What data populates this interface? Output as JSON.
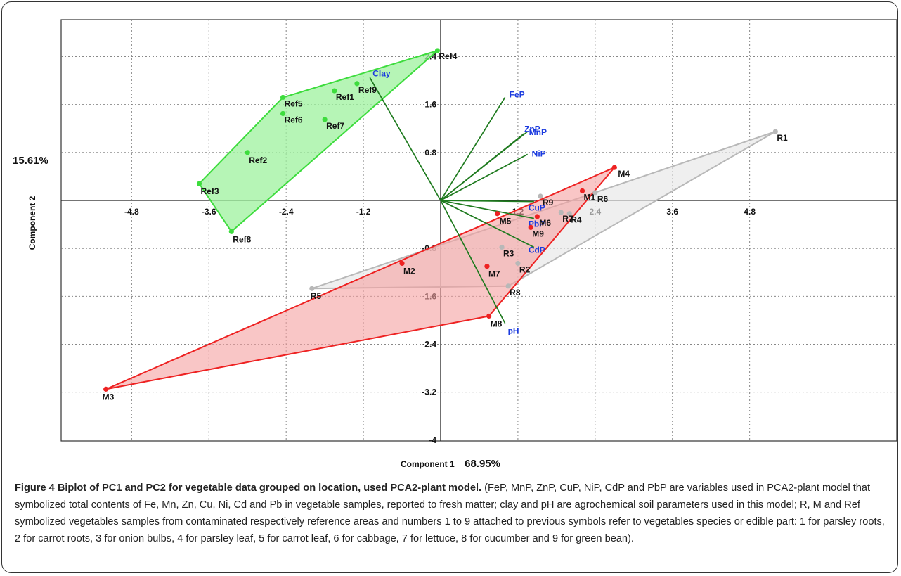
{
  "axes": {
    "x_label": "Component 1",
    "y_label": "Component 2",
    "x_percent": "68.95%",
    "y_percent": "15.61%"
  },
  "caption": {
    "title": "Figure 4 Biplot of PC1 and PC2 for vegetable data grouped on location, used PCA2-plant model.",
    "body": "(FeP, MnP, ZnP, CuP, NiP, CdP and PbP are variables used in PCA2-plant model that symbolized total contents of Fe, Mn, Zn, Cu, Ni, Cd and Pb in vegetable samples, reported to fresh matter; clay and pH are agrochemical soil parameters used in this model; R, M and Ref symbolized vegetables samples from contaminated respectively reference areas and numbers 1 to 9 attached to previous symbols refer to vegetables species or edible part: 1 for parsley roots, 2 for carrot roots, 3 for onion bulbs, 4 for parsley leaf, 5 for carrot leaf, 6 for cabbage, 7 for lettuce, 8 for cucumber and 9 for green bean)."
  },
  "colors": {
    "ref": "#3ddc3d",
    "ref_fill": "#9df29d",
    "m": "#ee2222",
    "m_fill": "#f5a0a0",
    "r": "#b8b8b8",
    "r_fill": "#e6e6e6",
    "vector": "#1e7a1e",
    "vector_label": "#1a3adf"
  },
  "chart_data": {
    "type": "scatter",
    "xlabel": "Component 1",
    "ylabel": "Component 2",
    "xlim": [
      -5.7,
      5.9
    ],
    "ylim": [
      -4.0,
      2.6
    ],
    "x_ticks": [
      -4.8,
      -3.6,
      -2.4,
      -1.2,
      1.2,
      2.4,
      3.6,
      4.8
    ],
    "y_ticks": [
      2.4,
      1.6,
      0.8,
      -0.8,
      -1.6,
      -2.4,
      -3.2,
      -4
    ],
    "grid": true,
    "series": [
      {
        "name": "Ref",
        "points": [
          {
            "label": "Ref1",
            "x": -1.65,
            "y": 1.83
          },
          {
            "label": "Ref2",
            "x": -3.0,
            "y": 0.8
          },
          {
            "label": "Ref3",
            "x": -3.75,
            "y": 0.28
          },
          {
            "label": "Ref4",
            "x": -0.05,
            "y": 2.5
          },
          {
            "label": "Ref5",
            "x": -2.45,
            "y": 1.72
          },
          {
            "label": "Ref6",
            "x": -2.45,
            "y": 1.45
          },
          {
            "label": "Ref7",
            "x": -1.8,
            "y": 1.35
          },
          {
            "label": "Ref8",
            "x": -3.25,
            "y": -0.52
          },
          {
            "label": "Ref9",
            "x": -1.3,
            "y": 1.95
          }
        ],
        "hull": [
          "Ref4",
          "Ref5",
          "Ref3",
          "Ref8",
          "Ref4"
        ]
      },
      {
        "name": "M",
        "points": [
          {
            "label": "M1",
            "x": 2.2,
            "y": 0.16
          },
          {
            "label": "M2",
            "x": -0.6,
            "y": -1.05
          },
          {
            "label": "M3",
            "x": -5.2,
            "y": -3.15
          },
          {
            "label": "M4",
            "x": 2.7,
            "y": 0.55
          },
          {
            "label": "M5",
            "x": 0.88,
            "y": -0.22
          },
          {
            "label": "M6",
            "x": 1.5,
            "y": -0.27
          },
          {
            "label": "M7",
            "x": 0.72,
            "y": -1.1
          },
          {
            "label": "M8",
            "x": 0.75,
            "y": -1.93
          },
          {
            "label": "M9",
            "x": 1.4,
            "y": -0.45
          }
        ],
        "hull": [
          "M4",
          "M3",
          "M8",
          "M4"
        ]
      },
      {
        "name": "R",
        "points": [
          {
            "label": "R1",
            "x": 5.2,
            "y": 1.15
          },
          {
            "label": "R2",
            "x": 1.2,
            "y": -1.05
          },
          {
            "label": "R3",
            "x": 0.95,
            "y": -0.78
          },
          {
            "label": "R4",
            "x": 2.0,
            "y": -0.22
          },
          {
            "label": "R5",
            "x": -2.0,
            "y": -1.47
          },
          {
            "label": "R6",
            "x": 2.4,
            "y": 0.13
          },
          {
            "label": "R7",
            "x": 1.87,
            "y": -0.2
          },
          {
            "label": "R8",
            "x": 1.05,
            "y": -1.43
          },
          {
            "label": "R9",
            "x": 1.55,
            "y": 0.07
          }
        ],
        "hull": [
          "R1",
          "R5",
          "R8",
          "R1"
        ]
      }
    ],
    "vectors": [
      {
        "label": "FeP",
        "x": 1.0,
        "y": 1.72
      },
      {
        "label": "MnP",
        "x": 1.35,
        "y": 1.15
      },
      {
        "label": "ZnP",
        "x": 1.3,
        "y": 1.12
      },
      {
        "label": "NiP",
        "x": 1.35,
        "y": 0.77
      },
      {
        "label": "CuP",
        "x": 1.45,
        "y": -0.02
      },
      {
        "label": "PbP",
        "x": 1.45,
        "y": -0.3
      },
      {
        "label": "CdP",
        "x": 1.45,
        "y": -0.78
      },
      {
        "label": "pH",
        "x": 1.0,
        "y": -2.05
      },
      {
        "label": "Clay",
        "x": -1.1,
        "y": 2.05
      }
    ]
  }
}
